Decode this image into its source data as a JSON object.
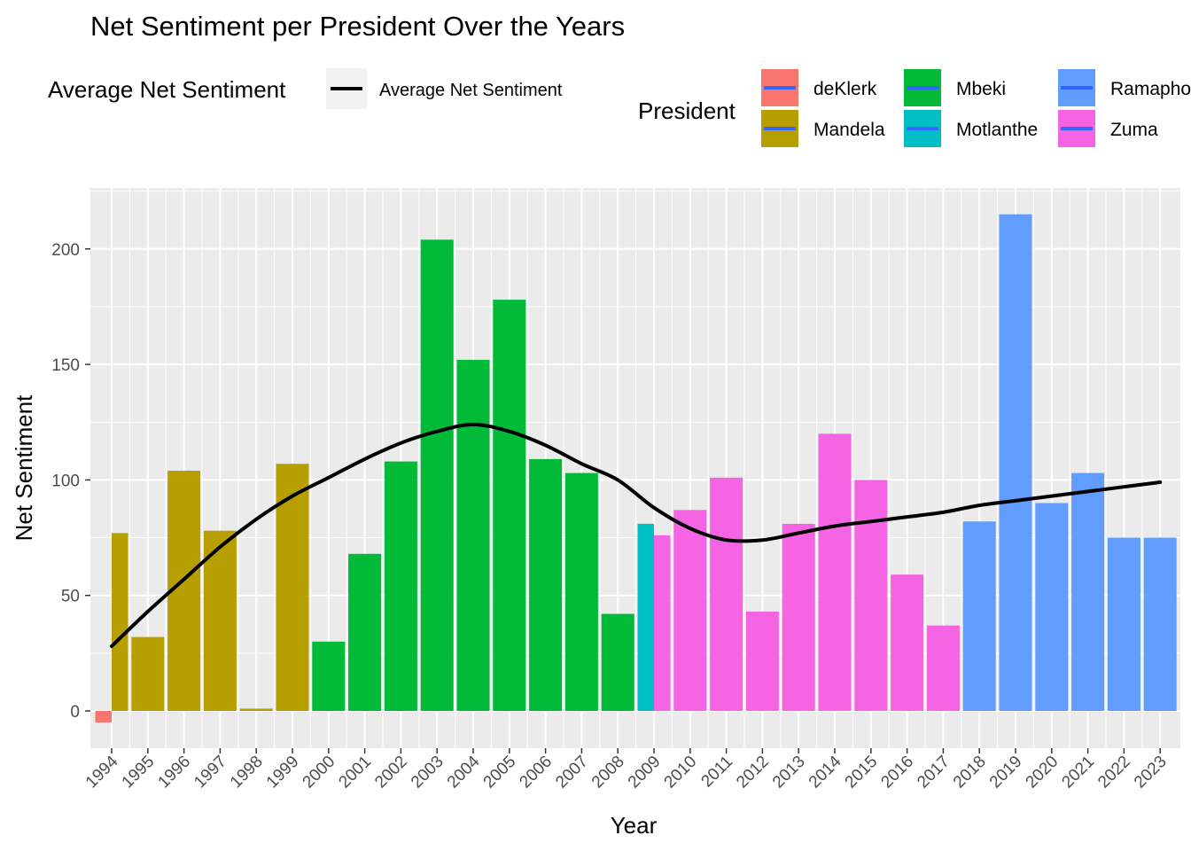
{
  "chart_data": {
    "type": "bar",
    "title": "Net Sentiment per President Over the Years",
    "xlabel": "Year",
    "ylabel": "Net Sentiment",
    "ylim": [
      -15,
      225
    ],
    "yticks": [
      0,
      50,
      100,
      150,
      200
    ],
    "grid": true,
    "legend_placement": "top",
    "line_legend": {
      "title": "Average Net Sentiment",
      "label": "Average Net Sentiment",
      "color": "#000000"
    },
    "fill_legend": {
      "title": "President",
      "entries": [
        {
          "name": "deKlerk",
          "color": "#F8766D"
        },
        {
          "name": "Mandela",
          "color": "#B79F00"
        },
        {
          "name": "Mbeki",
          "color": "#00BA38"
        },
        {
          "name": "Motlanthe",
          "color": "#00BFC4"
        },
        {
          "name": "Ramaphosa",
          "color": "#619CFF"
        },
        {
          "name": "Zuma",
          "color": "#F564E3"
        }
      ],
      "key_line_color": "#3366FF"
    },
    "categories": [
      "1994",
      "1995",
      "1996",
      "1997",
      "1998",
      "1999",
      "2000",
      "2001",
      "2002",
      "2003",
      "2004",
      "2005",
      "2006",
      "2007",
      "2008",
      "2009",
      "2010",
      "2011",
      "2012",
      "2013",
      "2014",
      "2015",
      "2016",
      "2017",
      "2018",
      "2019",
      "2020",
      "2021",
      "2022",
      "2023"
    ],
    "bars": [
      {
        "year": 1994,
        "president": "deKlerk",
        "value": -5
      },
      {
        "year": 1994,
        "president": "Mandela",
        "value": 77
      },
      {
        "year": 1995,
        "president": "Mandela",
        "value": 32
      },
      {
        "year": 1996,
        "president": "Mandela",
        "value": 104
      },
      {
        "year": 1997,
        "president": "Mandela",
        "value": 78
      },
      {
        "year": 1998,
        "president": "Mandela",
        "value": 1
      },
      {
        "year": 1999,
        "president": "Mandela",
        "value": 107
      },
      {
        "year": 2000,
        "president": "Mbeki",
        "value": 30
      },
      {
        "year": 2001,
        "president": "Mbeki",
        "value": 68
      },
      {
        "year": 2002,
        "president": "Mbeki",
        "value": 108
      },
      {
        "year": 2003,
        "president": "Mbeki",
        "value": 204
      },
      {
        "year": 2004,
        "president": "Mbeki",
        "value": 152
      },
      {
        "year": 2005,
        "president": "Mbeki",
        "value": 178
      },
      {
        "year": 2006,
        "president": "Mbeki",
        "value": 109
      },
      {
        "year": 2007,
        "president": "Mbeki",
        "value": 103
      },
      {
        "year": 2008,
        "president": "Mbeki",
        "value": 42
      },
      {
        "year": 2009,
        "president": "Motlanthe",
        "value": 81
      },
      {
        "year": 2009,
        "president": "Zuma",
        "value": 76
      },
      {
        "year": 2010,
        "president": "Zuma",
        "value": 87
      },
      {
        "year": 2011,
        "president": "Zuma",
        "value": 101
      },
      {
        "year": 2012,
        "president": "Zuma",
        "value": 43
      },
      {
        "year": 2013,
        "president": "Zuma",
        "value": 81
      },
      {
        "year": 2014,
        "president": "Zuma",
        "value": 120
      },
      {
        "year": 2015,
        "president": "Zuma",
        "value": 100
      },
      {
        "year": 2016,
        "president": "Zuma",
        "value": 59
      },
      {
        "year": 2017,
        "president": "Zuma",
        "value": 37
      },
      {
        "year": 2018,
        "president": "Ramaphosa",
        "value": 82
      },
      {
        "year": 2019,
        "president": "Ramaphosa",
        "value": 215
      },
      {
        "year": 2020,
        "president": "Ramaphosa",
        "value": 90
      },
      {
        "year": 2021,
        "president": "Ramaphosa",
        "value": 103
      },
      {
        "year": 2022,
        "president": "Ramaphosa",
        "value": 75
      },
      {
        "year": 2023,
        "president": "Ramaphosa",
        "value": 75
      }
    ],
    "average_line": {
      "name": "Average Net Sentiment",
      "x": [
        1994,
        1995,
        1996,
        1997,
        1998,
        1999,
        2000,
        2001,
        2002,
        2003,
        2004,
        2005,
        2006,
        2007,
        2008,
        2009,
        2010,
        2011,
        2012,
        2013,
        2014,
        2015,
        2016,
        2017,
        2018,
        2019,
        2020,
        2021,
        2022,
        2023
      ],
      "y": [
        28,
        43,
        57,
        71,
        83,
        93,
        101,
        109,
        116,
        121,
        124,
        121,
        115,
        107,
        100,
        88,
        79,
        74,
        74,
        77,
        80,
        82,
        84,
        86,
        89,
        91,
        93,
        95,
        97,
        99
      ]
    }
  }
}
